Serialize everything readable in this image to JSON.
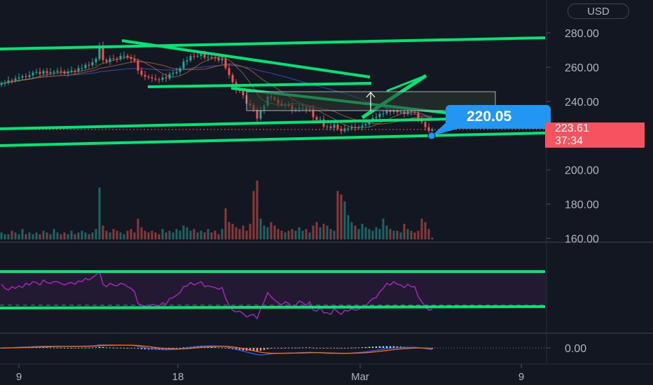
{
  "currency_button": "USD",
  "price_tag": {
    "last_price": "223.61",
    "countdown": "37:34"
  },
  "callout_label": "220.05",
  "colors": {
    "background": "#131722",
    "up": "#26a69a",
    "down": "#ef5350",
    "drawing": "#00e676",
    "rsi": "#9c27b0",
    "callout": "#2196f3"
  },
  "chart_data": [
    {
      "type": "candlestick",
      "title": "",
      "ylim": [
        160,
        290
      ],
      "y_ticks": [
        "280.00",
        "260.00",
        "240.00",
        "220.00",
        "200.00",
        "180.00",
        "160.00"
      ],
      "x_ticks": [
        "9",
        "18",
        "Mar",
        "9"
      ],
      "last_price": 223.61,
      "open": [
        249.6,
        250.6,
        250.8,
        252.3,
        252.2,
        253.4,
        253.9,
        254.7,
        254.3,
        255.3,
        256.8,
        257.3,
        256.1,
        257.8,
        256.5,
        257.2,
        257.3,
        257.9,
        257.5,
        256.3,
        257.4,
        258.0,
        257.7,
        259.5,
        259.5,
        261.4,
        261.1,
        262.9,
        264.8,
        272.6,
        264.2,
        263.2,
        265.1,
        265.0,
        264.7,
        266.6,
        266.7,
        265.7,
        264.8,
        263.8,
        258.0,
        255.5,
        254.5,
        254.0,
        253.4,
        252.9,
        252.6,
        254.0,
        253.4,
        256.0,
        256.5,
        257.3,
        259.4,
        263.3,
        263.9,
        266.6,
        266.5,
        266.6,
        267.9,
        265.6,
        265.9,
        265.6,
        265.5,
        264.0,
        265.1,
        259.5,
        255.5,
        251.2,
        246.6,
        246.1,
        243.6,
        238.8,
        237.9,
        235.1,
        230.0,
        234.7,
        237.5,
        242.9,
        242.2,
        241.1,
        238.8,
        237.8,
        238.1,
        237.7,
        234.8,
        235.6,
        236.1,
        236.2,
        235.1,
        235.6,
        230.8,
        229.3,
        229.5,
        225.3,
        225.4,
        224.5,
        226.5,
        224.0,
        222.7,
        224.2,
        224.2,
        225.0,
        224.7,
        225.0,
        226.0,
        226.6,
        228.3,
        230.3,
        230.9,
        232.8,
        233.1,
        234.5,
        233.8,
        235.0,
        233.7,
        234.0,
        232.6,
        234.2,
        233.7,
        233.5,
        229.8,
        228.0,
        225.0,
        222.8
      ],
      "close": [
        250.6,
        250.8,
        252.3,
        252.2,
        253.4,
        253.9,
        254.7,
        254.3,
        255.3,
        256.8,
        257.3,
        256.1,
        257.8,
        256.5,
        257.2,
        257.3,
        257.9,
        257.5,
        256.3,
        257.4,
        258.0,
        257.7,
        259.5,
        259.5,
        261.4,
        261.1,
        262.9,
        264.8,
        272.6,
        264.2,
        263.2,
        265.1,
        265.0,
        264.7,
        266.6,
        266.7,
        265.7,
        264.8,
        263.8,
        258.0,
        255.5,
        254.5,
        254.0,
        253.4,
        252.9,
        252.6,
        254.0,
        253.4,
        256.0,
        256.5,
        257.3,
        259.4,
        263.3,
        263.9,
        266.6,
        266.5,
        266.6,
        267.9,
        265.6,
        265.9,
        265.6,
        265.5,
        264.0,
        265.1,
        259.5,
        255.5,
        251.2,
        246.6,
        246.1,
        243.6,
        238.8,
        237.9,
        235.1,
        230.0,
        234.7,
        237.5,
        242.9,
        242.2,
        241.1,
        238.8,
        237.8,
        238.1,
        237.7,
        234.8,
        235.6,
        236.1,
        236.2,
        235.1,
        235.6,
        230.8,
        229.3,
        229.5,
        225.3,
        225.4,
        224.5,
        226.5,
        224.0,
        222.7,
        224.2,
        224.2,
        225.0,
        224.7,
        225.0,
        226.0,
        226.6,
        228.3,
        230.3,
        230.9,
        232.8,
        233.1,
        234.5,
        233.8,
        235.0,
        233.7,
        234.0,
        232.6,
        234.2,
        233.7,
        233.5,
        229.8,
        228.0,
        225.0,
        222.8,
        223.6
      ],
      "volume": [
        4,
        3,
        3,
        5,
        4,
        3,
        6,
        3,
        4,
        3,
        4,
        3,
        5,
        4,
        3,
        6,
        4,
        3,
        4,
        3,
        5,
        3,
        4,
        5,
        4,
        3,
        4,
        6,
        30,
        8,
        5,
        4,
        6,
        5,
        4,
        3,
        5,
        6,
        4,
        12,
        7,
        5,
        4,
        5,
        4,
        3,
        6,
        4,
        5,
        4,
        6,
        5,
        8,
        7,
        5,
        6,
        4,
        5,
        4,
        6,
        4,
        5,
        3,
        6,
        18,
        10,
        9,
        7,
        6,
        8,
        5,
        9,
        28,
        34,
        12,
        8,
        7,
        10,
        8,
        6,
        5,
        4,
        5,
        6,
        5,
        7,
        5,
        6,
        4,
        8,
        10,
        7,
        9,
        8,
        6,
        5,
        28,
        26,
        22,
        14,
        10,
        8,
        6,
        9,
        7,
        6,
        5,
        7,
        6,
        12,
        8,
        6,
        5,
        5,
        4,
        9,
        6,
        5,
        4,
        5,
        12,
        10,
        6,
        1
      ],
      "volume_ylim": [
        0,
        34
      ],
      "rsi": [
        55,
        50,
        48,
        52,
        50,
        53,
        51,
        56,
        54,
        58,
        57,
        54,
        60,
        57,
        56,
        58,
        58,
        56,
        54,
        56,
        57,
        55,
        59,
        58,
        62,
        60,
        63,
        66,
        70,
        55,
        52,
        56,
        54,
        53,
        56,
        55,
        52,
        50,
        46,
        32,
        30,
        29,
        28,
        31,
        30,
        29,
        33,
        31,
        38,
        39,
        42,
        45,
        52,
        53,
        57,
        54,
        56,
        58,
        52,
        53,
        52,
        51,
        49,
        51,
        38,
        30,
        24,
        22,
        23,
        20,
        16,
        18,
        19,
        14,
        26,
        34,
        45,
        40,
        36,
        33,
        30,
        34,
        32,
        28,
        30,
        35,
        33,
        30,
        34,
        24,
        23,
        27,
        21,
        21,
        19,
        26,
        22,
        19,
        24,
        23,
        26,
        24,
        25,
        28,
        29,
        34,
        38,
        39,
        46,
        50,
        56,
        54,
        58,
        55,
        54,
        51,
        55,
        52,
        52,
        40,
        34,
        28,
        24,
        25
      ],
      "rsi_ylim": [
        0,
        100
      ],
      "macd_ticks": [
        "0.00"
      ]
    }
  ]
}
